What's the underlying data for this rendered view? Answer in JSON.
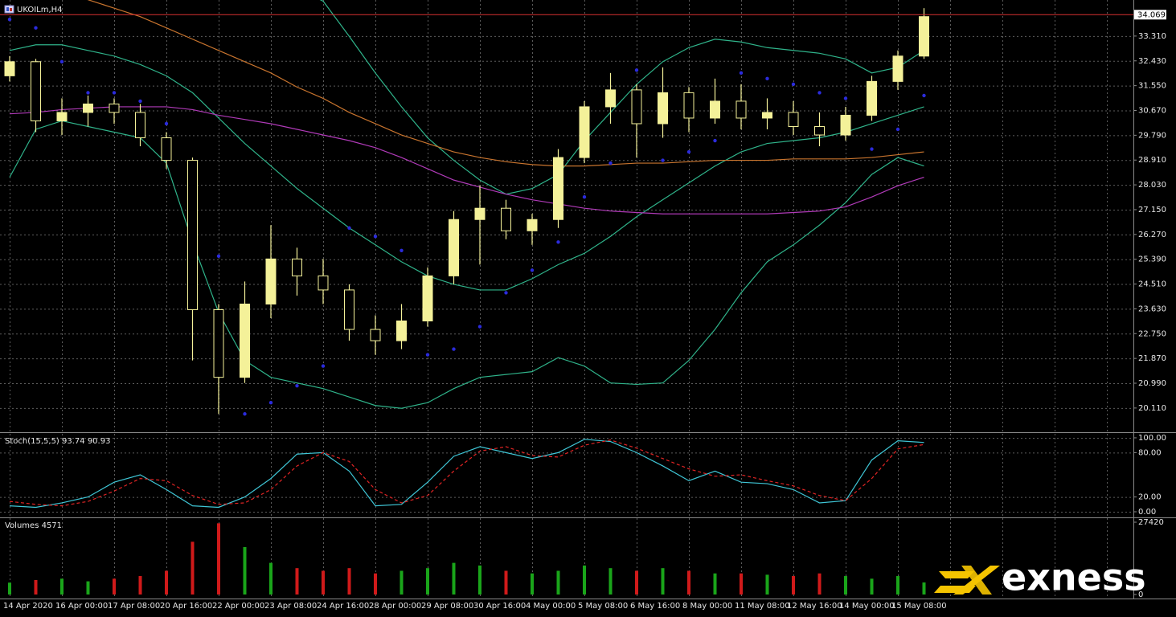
{
  "chart_data": [
    {
      "type": "candlestick",
      "title": "UKOILm,H4",
      "categories": [
        "14 Apr 2020",
        null,
        "16 Apr 00:00",
        null,
        "17 Apr 08:00",
        null,
        "20 Apr 16:00",
        null,
        "22 Apr 00:00",
        null,
        "23 Apr 08:00",
        null,
        "24 Apr 16:00",
        null,
        "28 Apr 00:00",
        null,
        "29 Apr 08:00",
        null,
        "30 Apr 16:00",
        null,
        "4 May 00:00",
        null,
        "5 May 08:00",
        null,
        "6 May 16:00",
        null,
        "8 May 00:00",
        null,
        "11 May 08:00",
        null,
        "12 May 16:00",
        null,
        "14 May 00:00",
        null,
        "15 May 08:00",
        null
      ],
      "open": [
        31.9,
        32.4,
        30.3,
        30.6,
        30.9,
        30.6,
        29.7,
        28.9,
        23.6,
        21.2,
        23.8,
        25.4,
        24.8,
        24.3,
        22.9,
        22.5,
        23.2,
        24.8,
        26.8,
        27.2,
        26.4,
        26.8,
        29.0,
        30.8,
        31.4,
        30.2,
        31.3,
        30.4,
        31.0,
        30.4,
        30.6,
        30.1,
        29.8,
        30.5,
        31.7,
        32.6
      ],
      "high": [
        32.6,
        32.5,
        31.1,
        31.2,
        31.1,
        30.9,
        29.9,
        29.0,
        23.8,
        24.6,
        26.6,
        25.8,
        25.4,
        24.5,
        23.4,
        23.8,
        25.1,
        27.1,
        28.0,
        27.5,
        27.0,
        29.3,
        31.0,
        32.0,
        31.6,
        32.2,
        31.5,
        31.8,
        31.6,
        31.1,
        31.0,
        30.6,
        30.8,
        31.9,
        32.8,
        34.3
      ],
      "low": [
        31.7,
        29.9,
        29.8,
        30.1,
        30.2,
        29.4,
        28.6,
        21.8,
        19.9,
        21.0,
        23.3,
        24.1,
        23.8,
        22.5,
        22.0,
        22.2,
        23.0,
        24.5,
        25.2,
        26.1,
        25.9,
        26.5,
        28.8,
        30.2,
        29.0,
        29.7,
        29.9,
        30.2,
        30.0,
        30.0,
        29.8,
        29.4,
        29.6,
        30.3,
        31.4,
        32.5
      ],
      "close": [
        32.4,
        30.3,
        30.6,
        30.9,
        30.6,
        29.7,
        28.9,
        23.6,
        21.2,
        23.8,
        25.4,
        24.8,
        24.3,
        22.9,
        22.5,
        23.2,
        24.8,
        26.8,
        27.2,
        26.4,
        26.8,
        29.0,
        30.8,
        31.4,
        30.2,
        31.3,
        30.4,
        31.0,
        30.4,
        30.6,
        30.1,
        29.8,
        30.5,
        31.7,
        32.6,
        34.0
      ],
      "candle_color": "#f4f199",
      "ylim": [
        19.28,
        34.59
      ],
      "yticks": [
        {
          "value": 33.31,
          "label": "33.310"
        },
        {
          "value": 32.43,
          "label": "32.430"
        },
        {
          "value": 31.55,
          "label": "31.550"
        },
        {
          "value": 30.67,
          "label": "30.670"
        },
        {
          "value": 29.79,
          "label": "29.790"
        },
        {
          "value": 28.91,
          "label": "28.910"
        },
        {
          "value": 28.03,
          "label": "28.030"
        },
        {
          "value": 27.15,
          "label": "27.150"
        },
        {
          "value": 26.27,
          "label": "26.270"
        },
        {
          "value": 25.39,
          "label": "25.390"
        },
        {
          "value": 24.51,
          "label": "24.510"
        },
        {
          "value": 23.63,
          "label": "23.630"
        },
        {
          "value": 22.75,
          "label": "22.750"
        },
        {
          "value": 21.87,
          "label": "21.870"
        },
        {
          "value": 20.99,
          "label": "20.990"
        },
        {
          "value": 20.11,
          "label": "20.110"
        }
      ],
      "grid": true,
      "last_price": 34.069,
      "last_price_color": "#d93030",
      "overlays": [
        {
          "style": "line",
          "color": "#2fb38a",
          "values": [
            36.5,
            36.8,
            37.0,
            37.2,
            37.4,
            37.5,
            37.4,
            37.0,
            36.5,
            36.0,
            35.5,
            35.0,
            34.55,
            33.3,
            32.0,
            30.8,
            29.7,
            28.9,
            28.2,
            27.7,
            27.9,
            28.4,
            29.6,
            30.6,
            31.6,
            32.4,
            32.9,
            33.2,
            33.1,
            32.9,
            32.8,
            32.7,
            32.5,
            32.0,
            32.2,
            32.8
          ]
        },
        {
          "style": "line",
          "color": "#2fb38a",
          "values": [
            32.8,
            33.0,
            33.0,
            32.8,
            32.6,
            32.3,
            31.9,
            31.3,
            30.4,
            29.5,
            28.7,
            27.9,
            27.2,
            26.5,
            25.9,
            25.3,
            24.8,
            24.5,
            24.3,
            24.3,
            24.7,
            25.2,
            25.6,
            26.2,
            26.9,
            27.5,
            28.1,
            28.7,
            29.2,
            29.5,
            29.6,
            29.7,
            29.9,
            30.2,
            30.5,
            30.8
          ]
        },
        {
          "style": "line",
          "color": "#2fb38a",
          "values": [
            28.3,
            30.0,
            30.3,
            30.1,
            29.9,
            29.7,
            28.8,
            26.0,
            23.5,
            21.8,
            21.2,
            21.0,
            20.8,
            20.5,
            20.2,
            20.1,
            20.3,
            20.8,
            21.2,
            21.3,
            21.4,
            21.9,
            21.6,
            21.0,
            20.95,
            21.0,
            21.8,
            22.9,
            24.2,
            25.3,
            25.9,
            26.6,
            27.4,
            28.4,
            29.0,
            28.7
          ]
        },
        {
          "style": "line",
          "color": "#c8742e",
          "values": [
            35.6,
            35.3,
            35.0,
            34.6,
            34.3,
            34.0,
            33.6,
            33.2,
            32.8,
            32.4,
            32.0,
            31.5,
            31.1,
            30.6,
            30.2,
            29.8,
            29.5,
            29.2,
            29.0,
            28.85,
            28.75,
            28.7,
            28.7,
            28.75,
            28.8,
            28.8,
            28.85,
            28.9,
            28.9,
            28.9,
            28.95,
            28.95,
            28.95,
            29.0,
            29.1,
            29.2
          ]
        },
        {
          "style": "line",
          "color": "#b03ab8",
          "values": [
            30.55,
            30.6,
            30.7,
            30.75,
            30.8,
            30.8,
            30.8,
            30.7,
            30.5,
            30.35,
            30.2,
            30.0,
            29.8,
            29.6,
            29.35,
            29.0,
            28.6,
            28.2,
            27.95,
            27.7,
            27.5,
            27.35,
            27.2,
            27.1,
            27.05,
            27.0,
            27.0,
            27.0,
            27.0,
            27.0,
            27.05,
            27.1,
            27.25,
            27.6,
            28.0,
            28.3
          ]
        },
        {
          "style": "dots",
          "color": "#2b2bdc",
          "values": [
            33.9,
            33.6,
            32.4,
            31.3,
            31.3,
            31.0,
            30.2,
            28.6,
            25.5,
            19.9,
            20.3,
            20.9,
            21.6,
            26.5,
            26.2,
            25.7,
            22.0,
            22.2,
            23.0,
            24.2,
            25.0,
            26.0,
            27.6,
            28.8,
            32.1,
            28.9,
            29.2,
            29.6,
            32.0,
            31.8,
            31.6,
            31.3,
            31.1,
            29.3,
            30.0,
            31.2
          ]
        }
      ]
    },
    {
      "type": "line",
      "title": "Stoch(15,5,5) 93.74 90.93",
      "ylim": [
        -6.5,
        105.4
      ],
      "yticks": [
        {
          "value": 100,
          "label": "100.00"
        },
        {
          "value": 80,
          "label": "80.00"
        },
        {
          "value": 20,
          "label": "20.00"
        },
        {
          "value": 0,
          "label": "0.00"
        }
      ],
      "grid": true,
      "lines": [
        {
          "color": "#3fc6d6",
          "dashed": false,
          "values": [
            8,
            6,
            12,
            20,
            40,
            50,
            30,
            8,
            6,
            20,
            45,
            78,
            80,
            55,
            8,
            10,
            40,
            75,
            88,
            80,
            72,
            80,
            98,
            95,
            80,
            62,
            42,
            55,
            40,
            38,
            30,
            12,
            15,
            70,
            96,
            93.74
          ]
        },
        {
          "color": "#e02424",
          "dashed": true,
          "values": [
            14,
            10,
            8,
            14,
            28,
            45,
            42,
            22,
            10,
            12,
            30,
            62,
            80,
            68,
            30,
            12,
            22,
            55,
            82,
            88,
            76,
            74,
            90,
            97,
            86,
            72,
            58,
            48,
            50,
            42,
            35,
            22,
            15,
            45,
            85,
            90.93
          ]
        }
      ]
    },
    {
      "type": "bar",
      "title": "Volumes 4571",
      "ylim": [
        -1520,
        28940
      ],
      "yticks": [
        27420,
        0
      ],
      "grid": false,
      "up_color": "#1aa51a",
      "down_color": "#d01a1a",
      "values": [
        4500,
        5500,
        6000,
        5000,
        6000,
        7000,
        9000,
        20000,
        27000,
        18000,
        12000,
        10000,
        9000,
        10000,
        8000,
        9000,
        10000,
        12000,
        11000,
        9000,
        8000,
        9000,
        11000,
        10000,
        9000,
        10000,
        9000,
        8000,
        8000,
        7500,
        7000,
        8000,
        7000,
        6000,
        7000,
        4571
      ]
    }
  ],
  "watermark": "exness"
}
